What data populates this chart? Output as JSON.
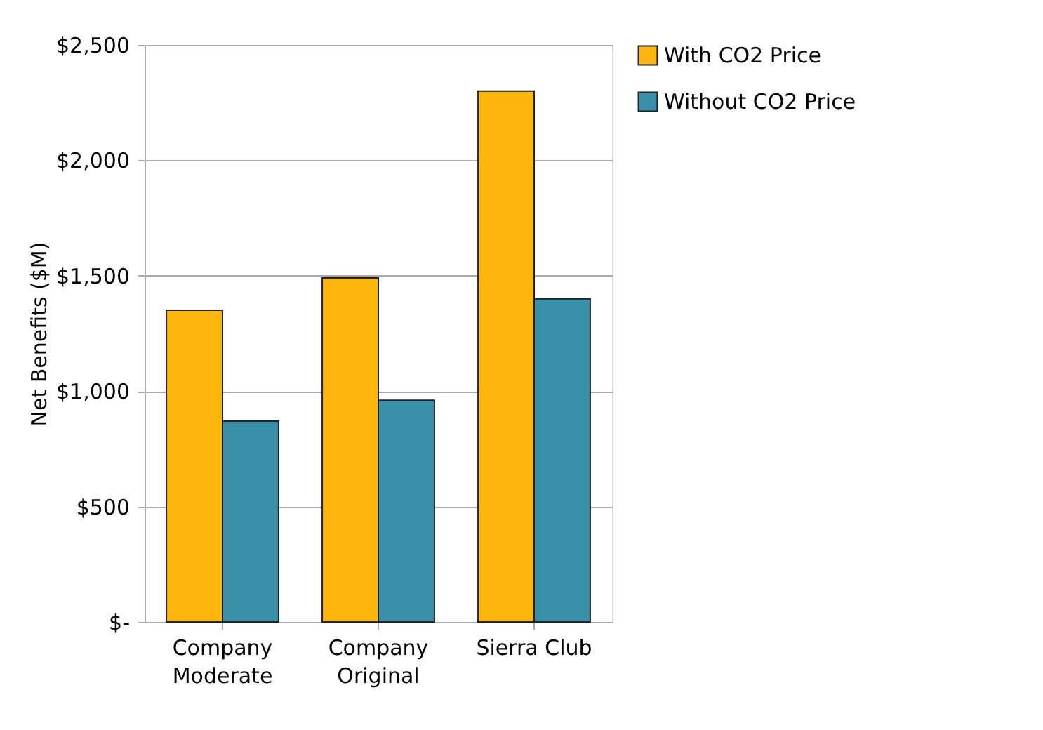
{
  "chart_data": {
    "type": "bar",
    "ylabel": "Net Benefits ($M)",
    "categories": [
      "Company\nModerate",
      "Company\nOriginal",
      "Sierra Club"
    ],
    "series": [
      {
        "name": "With CO2 Price",
        "color": "#fdb60b",
        "values": [
          1350,
          1490,
          2300
        ]
      },
      {
        "name": "Without CO2 Price",
        "color": "#3a90a8",
        "values": [
          870,
          960,
          1400
        ]
      }
    ],
    "ylim": [
      0,
      2500
    ],
    "yticks": [
      {
        "value": 0,
        "label": "$-"
      },
      {
        "value": 500,
        "label": "$500"
      },
      {
        "value": 1000,
        "label": "$1,000"
      },
      {
        "value": 1500,
        "label": "$1,500"
      },
      {
        "value": 2000,
        "label": "$2,000"
      },
      {
        "value": 2500,
        "label": "$2,500"
      }
    ],
    "grid": "y",
    "legend": "right"
  }
}
